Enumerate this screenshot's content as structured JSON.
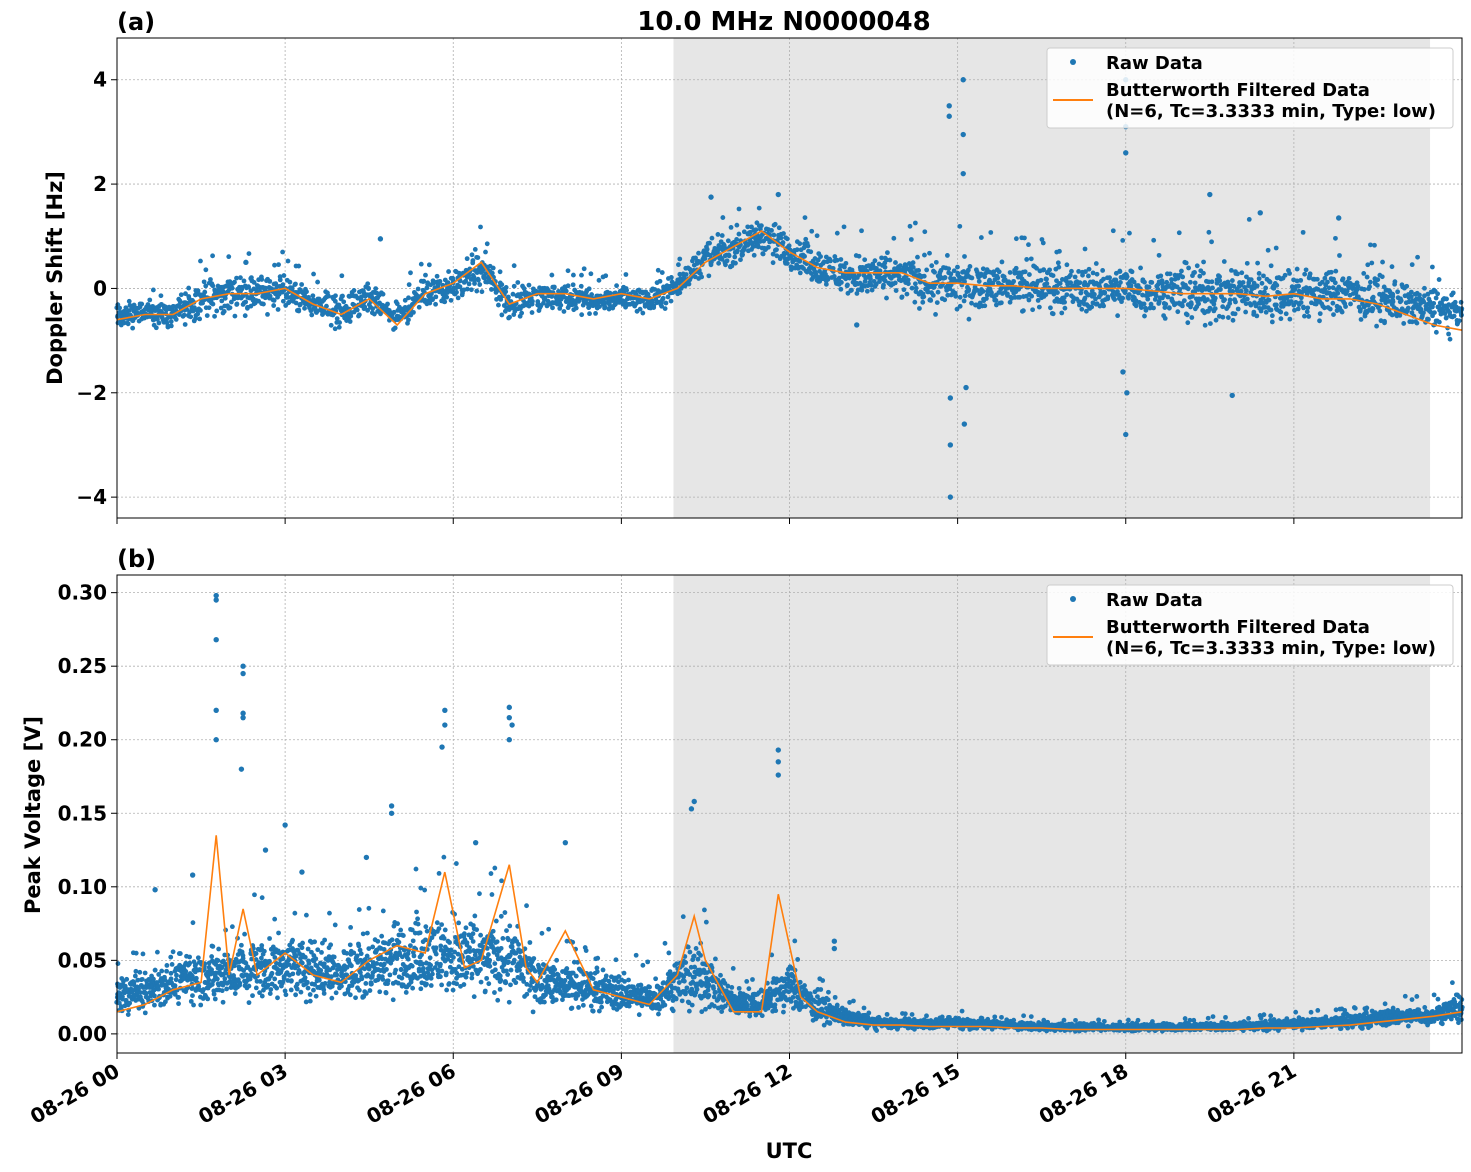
{
  "figure": {
    "title": "10.0 MHz N0000048",
    "xlabel": "UTC",
    "x_tick_labels": [
      "08-26 00",
      "08-26 03",
      "08-26 06",
      "08-26 09",
      "08-26 12",
      "08-26 15",
      "08-26 18",
      "08-26 21"
    ],
    "legend": {
      "raw": "Raw Data",
      "filtered_line1": "Butterworth Filtered Data",
      "filtered_line2": "(N=6, Tc=3.3333 min, Type: low)"
    },
    "colors": {
      "raw": "#1f77b4",
      "filtered": "#ff7f0e",
      "shade": "#e6e6e6",
      "grid": "#b0b0b0"
    }
  },
  "chart_data": [
    {
      "type": "scatter",
      "panel_label": "(a)",
      "title": "10.0 MHz N0000048",
      "xlabel": "",
      "ylabel": "Doppler Shift [Hz]",
      "xlim_hours": [
        0,
        24
      ],
      "ylim": [
        -4.4,
        4.8
      ],
      "yticks": [
        4,
        2,
        0,
        -2,
        -4
      ],
      "ytick_labels": [
        "4",
        "2",
        "0",
        "−2",
        "−4"
      ],
      "grid": true,
      "legend_position": "upper-right",
      "shaded_interval_hours": [
        9.93,
        23.43
      ],
      "series": [
        {
          "name": "Raw Data",
          "style": "points",
          "x_hours": [
            0,
            0.5,
            1,
            1.5,
            2,
            2.5,
            3,
            3.5,
            4,
            4.5,
            5,
            5.5,
            6,
            6.5,
            7,
            7.5,
            8,
            8.5,
            9,
            9.5,
            10,
            10.5,
            11,
            11.5,
            12,
            12.5,
            13,
            13.5,
            14,
            14.5,
            15,
            15.5,
            16,
            16.5,
            17,
            17.5,
            18,
            18.5,
            19,
            19.5,
            20,
            20.5,
            21,
            21.5,
            22,
            22.5,
            23,
            23.5,
            24
          ],
          "band_low": [
            -0.9,
            -0.8,
            -0.9,
            -0.7,
            -0.6,
            -0.6,
            -0.5,
            -0.7,
            -0.9,
            -0.6,
            -1.0,
            -0.5,
            -0.4,
            -0.1,
            -0.8,
            -0.5,
            -0.5,
            -0.6,
            -0.5,
            -0.6,
            -0.3,
            0.1,
            0.3,
            0.5,
            0.2,
            -0.1,
            -0.3,
            -0.3,
            -0.4,
            -0.6,
            -0.7,
            -0.6,
            -0.6,
            -0.6,
            -0.6,
            -0.7,
            -0.7,
            -0.7,
            -0.8,
            -0.9,
            -0.9,
            -0.9,
            -0.8,
            -0.8,
            -0.7,
            -0.8,
            -0.9,
            -1.0,
            -1.0
          ],
          "band_high": [
            -0.2,
            -0.1,
            -0.1,
            0.3,
            0.4,
            0.4,
            0.4,
            0.1,
            0.0,
            0.2,
            -0.2,
            0.4,
            0.5,
            0.9,
            0.2,
            0.2,
            0.2,
            0.1,
            0.2,
            0.1,
            0.4,
            1.0,
            1.3,
            1.5,
            1.2,
            0.9,
            0.8,
            0.8,
            0.8,
            0.8,
            0.8,
            0.7,
            0.7,
            0.7,
            0.6,
            0.6,
            0.7,
            0.6,
            0.6,
            0.7,
            0.8,
            0.7,
            0.6,
            0.6,
            0.5,
            0.4,
            0.3,
            0.2,
            0.0
          ],
          "outliers": [
            [
              14.85,
              3.5
            ],
            [
              14.85,
              3.3
            ],
            [
              14.87,
              -2.1
            ],
            [
              14.87,
              -3.0
            ],
            [
              14.87,
              -4.0
            ],
            [
              15.1,
              4.0
            ],
            [
              15.1,
              2.95
            ],
            [
              15.1,
              2.2
            ],
            [
              15.12,
              -2.6
            ],
            [
              15.15,
              -1.9
            ],
            [
              18.0,
              4.0
            ],
            [
              18.0,
              3.1
            ],
            [
              18.0,
              2.6
            ],
            [
              18.02,
              -2.0
            ],
            [
              18.0,
              -2.8
            ],
            [
              17.95,
              -1.6
            ],
            [
              13.2,
              -0.7
            ],
            [
              11.8,
              1.8
            ],
            [
              2.3,
              0.5
            ],
            [
              4.7,
              0.95
            ],
            [
              19.5,
              1.8
            ],
            [
              19.9,
              -2.05
            ],
            [
              20.4,
              1.45
            ],
            [
              21.8,
              1.35
            ],
            [
              10.6,
              1.75
            ]
          ]
        },
        {
          "name": "Butterworth Filtered Data (N=6, Tc=3.3333 min, Type: low)",
          "style": "line",
          "x_hours": [
            0,
            0.5,
            1,
            1.5,
            2,
            2.5,
            3,
            3.5,
            4,
            4.5,
            5,
            5.5,
            6,
            6.5,
            7,
            7.5,
            8,
            8.5,
            9,
            9.5,
            10,
            10.5,
            11,
            11.5,
            12,
            12.5,
            13,
            13.5,
            14,
            14.5,
            15,
            15.5,
            16,
            16.5,
            17,
            17.5,
            18,
            18.5,
            19,
            19.5,
            20,
            20.5,
            21,
            21.5,
            22,
            22.5,
            23,
            23.5,
            24
          ],
          "y": [
            -0.6,
            -0.5,
            -0.5,
            -0.2,
            -0.1,
            -0.1,
            0.0,
            -0.3,
            -0.5,
            -0.2,
            -0.7,
            -0.1,
            0.1,
            0.5,
            -0.3,
            -0.1,
            -0.1,
            -0.2,
            -0.1,
            -0.2,
            0.0,
            0.5,
            0.8,
            1.1,
            0.7,
            0.4,
            0.3,
            0.3,
            0.3,
            0.1,
            0.1,
            0.05,
            0.05,
            0.0,
            0.0,
            0.0,
            0.0,
            -0.05,
            -0.1,
            -0.1,
            -0.1,
            -0.15,
            -0.1,
            -0.2,
            -0.2,
            -0.3,
            -0.5,
            -0.7,
            -0.8
          ]
        }
      ]
    },
    {
      "type": "scatter",
      "panel_label": "(b)",
      "title": "",
      "xlabel": "UTC",
      "ylabel": "Peak Voltage [V]",
      "xlim_hours": [
        0,
        24
      ],
      "ylim": [
        -0.013,
        0.312
      ],
      "yticks": [
        0.0,
        0.05,
        0.1,
        0.15,
        0.2,
        0.25,
        0.3
      ],
      "ytick_labels": [
        "0.00",
        "0.05",
        "0.10",
        "0.15",
        "0.20",
        "0.25",
        "0.30"
      ],
      "grid": true,
      "legend_position": "upper-right",
      "shaded_interval_hours": [
        9.93,
        23.43
      ],
      "series": [
        {
          "name": "Raw Data",
          "style": "points",
          "x_hours": [
            0,
            0.5,
            1,
            1.5,
            2,
            2.5,
            3,
            3.5,
            4,
            4.5,
            5,
            5.5,
            6,
            6.5,
            7,
            7.5,
            8,
            8.5,
            9,
            9.5,
            10,
            10.5,
            11,
            11.5,
            12,
            12.5,
            13,
            13.5,
            14,
            14.5,
            15,
            15.5,
            16,
            16.5,
            17,
            17.5,
            18,
            18.5,
            19,
            19.5,
            20,
            20.5,
            21,
            21.5,
            22,
            22.5,
            23,
            23.5,
            24
          ],
          "band_low": [
            0.008,
            0.01,
            0.012,
            0.015,
            0.015,
            0.015,
            0.018,
            0.015,
            0.015,
            0.018,
            0.015,
            0.015,
            0.015,
            0.015,
            0.015,
            0.012,
            0.012,
            0.012,
            0.01,
            0.008,
            0.01,
            0.008,
            0.008,
            0.008,
            0.01,
            0.005,
            0.003,
            0.002,
            0.002,
            0.002,
            0.002,
            0.002,
            0.002,
            0.001,
            0.001,
            0.001,
            0.001,
            0.001,
            0.001,
            0.001,
            0.001,
            0.001,
            0.002,
            0.002,
            0.002,
            0.003,
            0.003,
            0.004,
            0.005
          ],
          "band_high": [
            0.045,
            0.05,
            0.06,
            0.065,
            0.07,
            0.075,
            0.075,
            0.07,
            0.07,
            0.075,
            0.085,
            0.09,
            0.095,
            0.085,
            0.09,
            0.06,
            0.055,
            0.05,
            0.045,
            0.04,
            0.06,
            0.07,
            0.035,
            0.035,
            0.055,
            0.03,
            0.02,
            0.013,
            0.012,
            0.012,
            0.013,
            0.012,
            0.01,
            0.009,
            0.008,
            0.008,
            0.008,
            0.008,
            0.008,
            0.009,
            0.009,
            0.01,
            0.012,
            0.013,
            0.015,
            0.018,
            0.02,
            0.022,
            0.03
          ],
          "outliers": [
            [
              1.77,
              0.298
            ],
            [
              1.77,
              0.295
            ],
            [
              1.77,
              0.268
            ],
            [
              1.77,
              0.22
            ],
            [
              1.77,
              0.2
            ],
            [
              2.25,
              0.25
            ],
            [
              2.25,
              0.245
            ],
            [
              2.25,
              0.218
            ],
            [
              2.25,
              0.215
            ],
            [
              2.22,
              0.18
            ],
            [
              5.85,
              0.22
            ],
            [
              5.85,
              0.21
            ],
            [
              5.8,
              0.195
            ],
            [
              7.0,
              0.222
            ],
            [
              7.0,
              0.215
            ],
            [
              7.05,
              0.21
            ],
            [
              7.0,
              0.2
            ],
            [
              11.8,
              0.193
            ],
            [
              11.8,
              0.185
            ],
            [
              11.8,
              0.176
            ],
            [
              10.3,
              0.158
            ],
            [
              10.25,
              0.153
            ],
            [
              12.8,
              0.063
            ],
            [
              12.8,
              0.058
            ],
            [
              4.9,
              0.155
            ],
            [
              4.9,
              0.15
            ],
            [
              3.0,
              0.142
            ],
            [
              2.65,
              0.125
            ],
            [
              8.0,
              0.13
            ],
            [
              1.35,
              0.108
            ],
            [
              0.68,
              0.098
            ],
            [
              6.4,
              0.13
            ],
            [
              3.3,
              0.11
            ],
            [
              4.45,
              0.12
            ]
          ]
        },
        {
          "name": "Butterworth Filtered Data (N=6, Tc=3.3333 min, Type: low)",
          "style": "line",
          "x_hours": [
            0,
            0.5,
            1,
            1.5,
            1.77,
            2,
            2.25,
            2.5,
            3,
            3.5,
            4,
            4.5,
            5,
            5.5,
            5.85,
            6.2,
            6.5,
            7.0,
            7.3,
            7.5,
            8.0,
            8.5,
            9,
            9.5,
            10,
            10.3,
            10.5,
            11,
            11.5,
            11.8,
            12.2,
            12.5,
            13,
            13.5,
            14,
            14.5,
            15,
            15.5,
            16,
            16.5,
            17,
            17.5,
            18,
            18.5,
            19,
            19.5,
            20,
            20.5,
            21,
            21.5,
            22,
            22.5,
            23,
            23.5,
            24
          ],
          "y": [
            0.015,
            0.02,
            0.03,
            0.035,
            0.135,
            0.04,
            0.085,
            0.04,
            0.055,
            0.04,
            0.035,
            0.05,
            0.06,
            0.055,
            0.11,
            0.045,
            0.05,
            0.115,
            0.045,
            0.035,
            0.07,
            0.03,
            0.025,
            0.02,
            0.04,
            0.08,
            0.05,
            0.015,
            0.015,
            0.095,
            0.025,
            0.015,
            0.008,
            0.006,
            0.006,
            0.005,
            0.005,
            0.005,
            0.004,
            0.004,
            0.003,
            0.003,
            0.003,
            0.003,
            0.003,
            0.003,
            0.003,
            0.004,
            0.004,
            0.005,
            0.006,
            0.008,
            0.01,
            0.012,
            0.015
          ]
        }
      ]
    }
  ]
}
